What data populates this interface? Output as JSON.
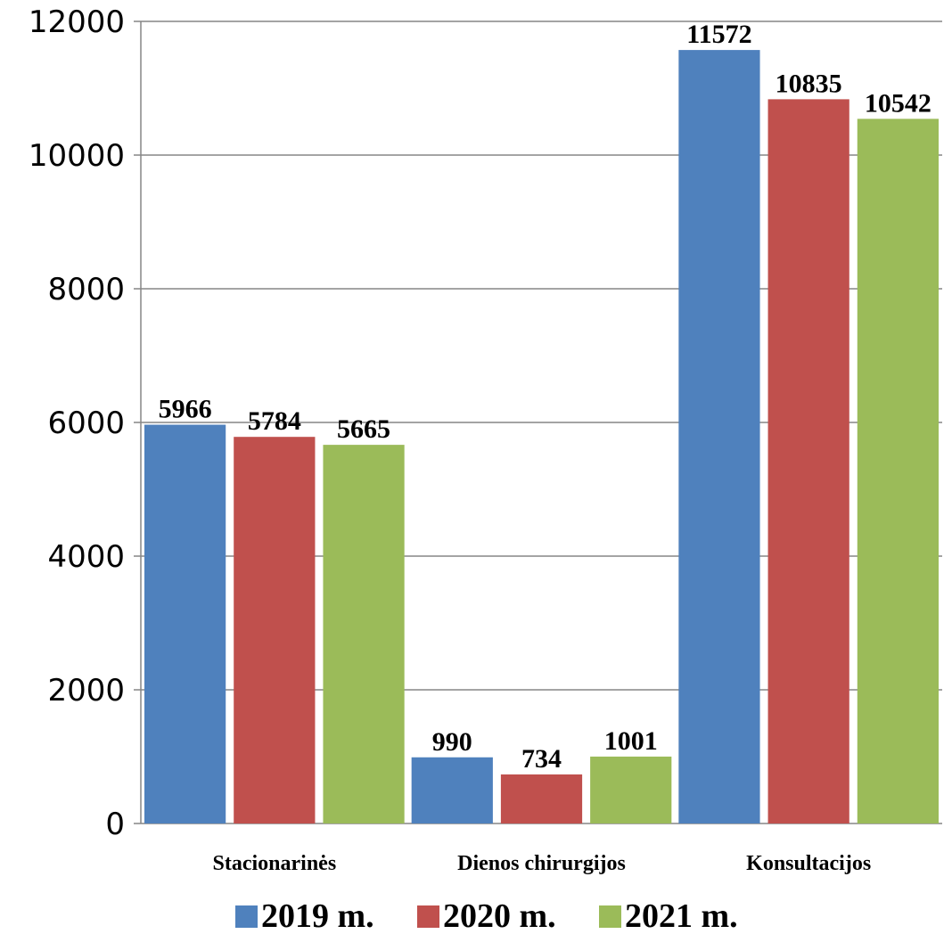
{
  "chart_data": {
    "type": "bar",
    "title": "",
    "xlabel": "",
    "ylabel": "",
    "ylim": [
      0,
      12000
    ],
    "yticks": [
      0,
      2000,
      4000,
      6000,
      8000,
      10000,
      12000
    ],
    "grid": true,
    "legend_position": "bottom",
    "categories": [
      "Stacionarinės",
      "Dienos chirurgijos",
      "Konsultacijos"
    ],
    "series": [
      {
        "name": "2019 m.",
        "color": "#4f81bd",
        "values": [
          5966,
          990,
          11572
        ]
      },
      {
        "name": "2020 m.",
        "color": "#c0504d",
        "values": [
          5784,
          734,
          10835
        ]
      },
      {
        "name": "2021 m.",
        "color": "#9bbb59",
        "values": [
          5665,
          1001,
          10542
        ]
      }
    ]
  }
}
